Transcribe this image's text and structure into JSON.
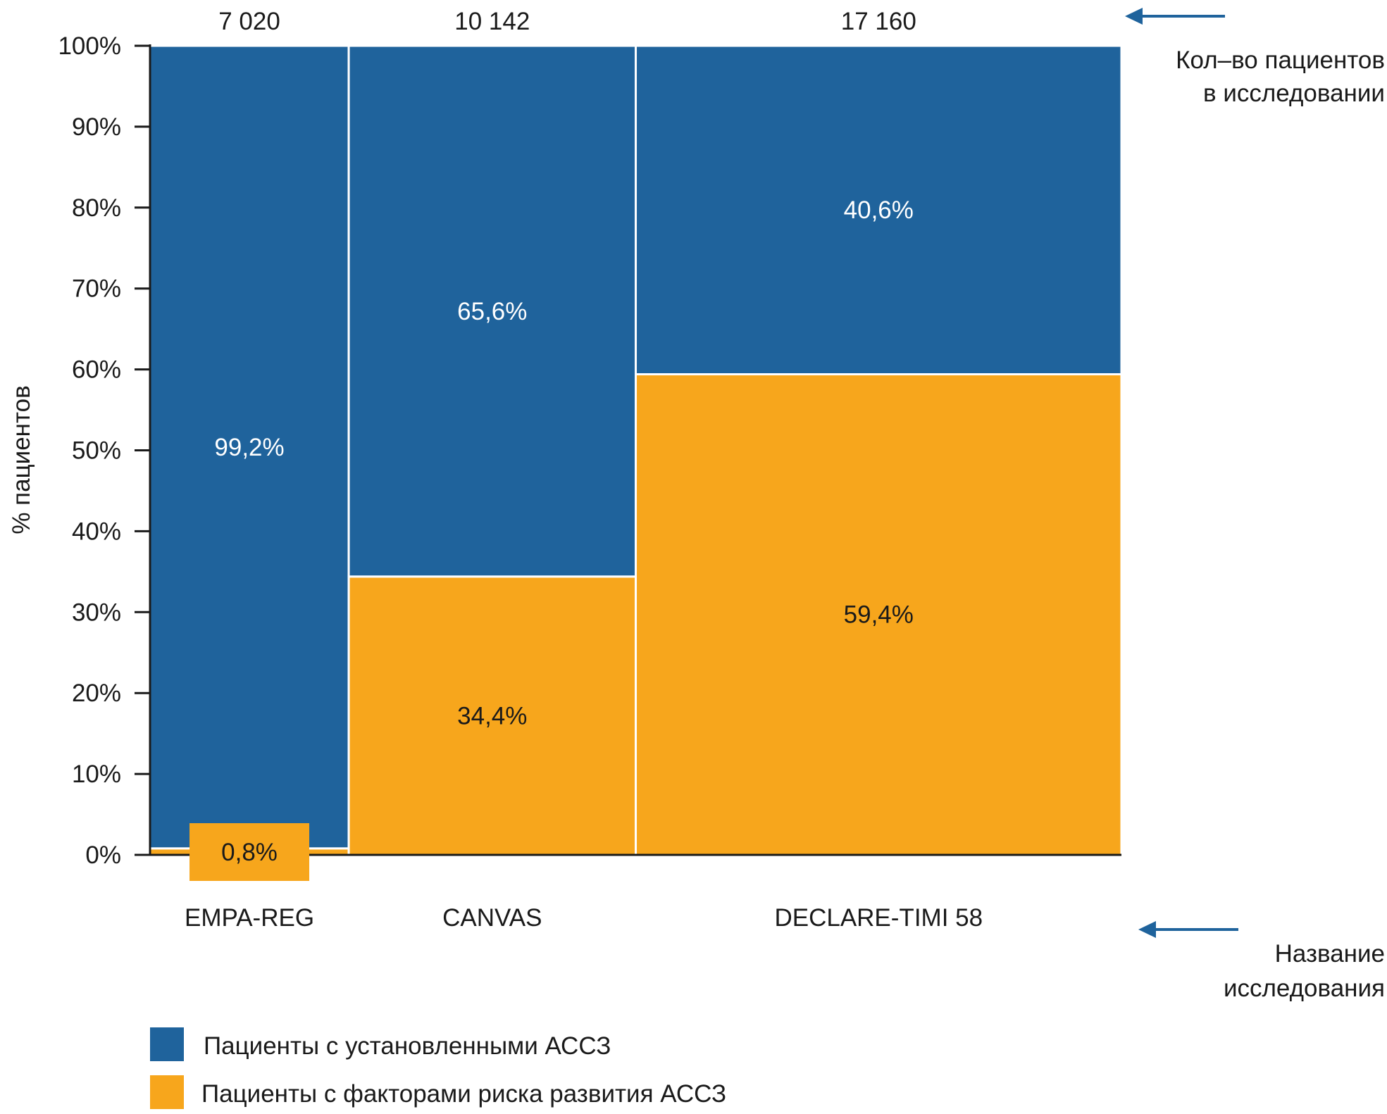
{
  "chart_data": {
    "type": "bar",
    "variant": "mosaic (variable-width 100% stacked)",
    "ylabel": "% пациентов",
    "ylim": [
      0,
      100
    ],
    "yticks": [
      "0%",
      "10%",
      "20%",
      "30%",
      "40%",
      "50%",
      "60%",
      "70%",
      "80%",
      "90%",
      "100%"
    ],
    "categories": [
      "EMPA-REG",
      "CANVAS",
      "DECLARE-TIMI 58"
    ],
    "patients": [
      7020,
      10142,
      17160
    ],
    "patients_labels": [
      "7 020",
      "10 142",
      "17 160"
    ],
    "series": [
      {
        "name": "Пациенты с факторами риска развития АССЗ",
        "color": "#f7a61c",
        "values": [
          0.8,
          34.4,
          59.4
        ],
        "labels": [
          "0,8%",
          "34,4%",
          "59,4%"
        ]
      },
      {
        "name": "Пациенты с установленными АССЗ",
        "color": "#1f639c",
        "values": [
          99.2,
          65.6,
          40.6
        ],
        "labels": [
          "99,2%",
          "65,6%",
          "40,6%"
        ]
      }
    ],
    "annotations": {
      "patients_note": [
        "Кол–во пациентов",
        "в исследовании"
      ],
      "name_note": [
        "Название",
        "исследования"
      ]
    },
    "legend": {
      "placement": "bottom-left",
      "items": [
        "Пациенты с установленными АССЗ",
        "Пациенты с факторами риска развития АССЗ"
      ]
    },
    "grid": false
  }
}
